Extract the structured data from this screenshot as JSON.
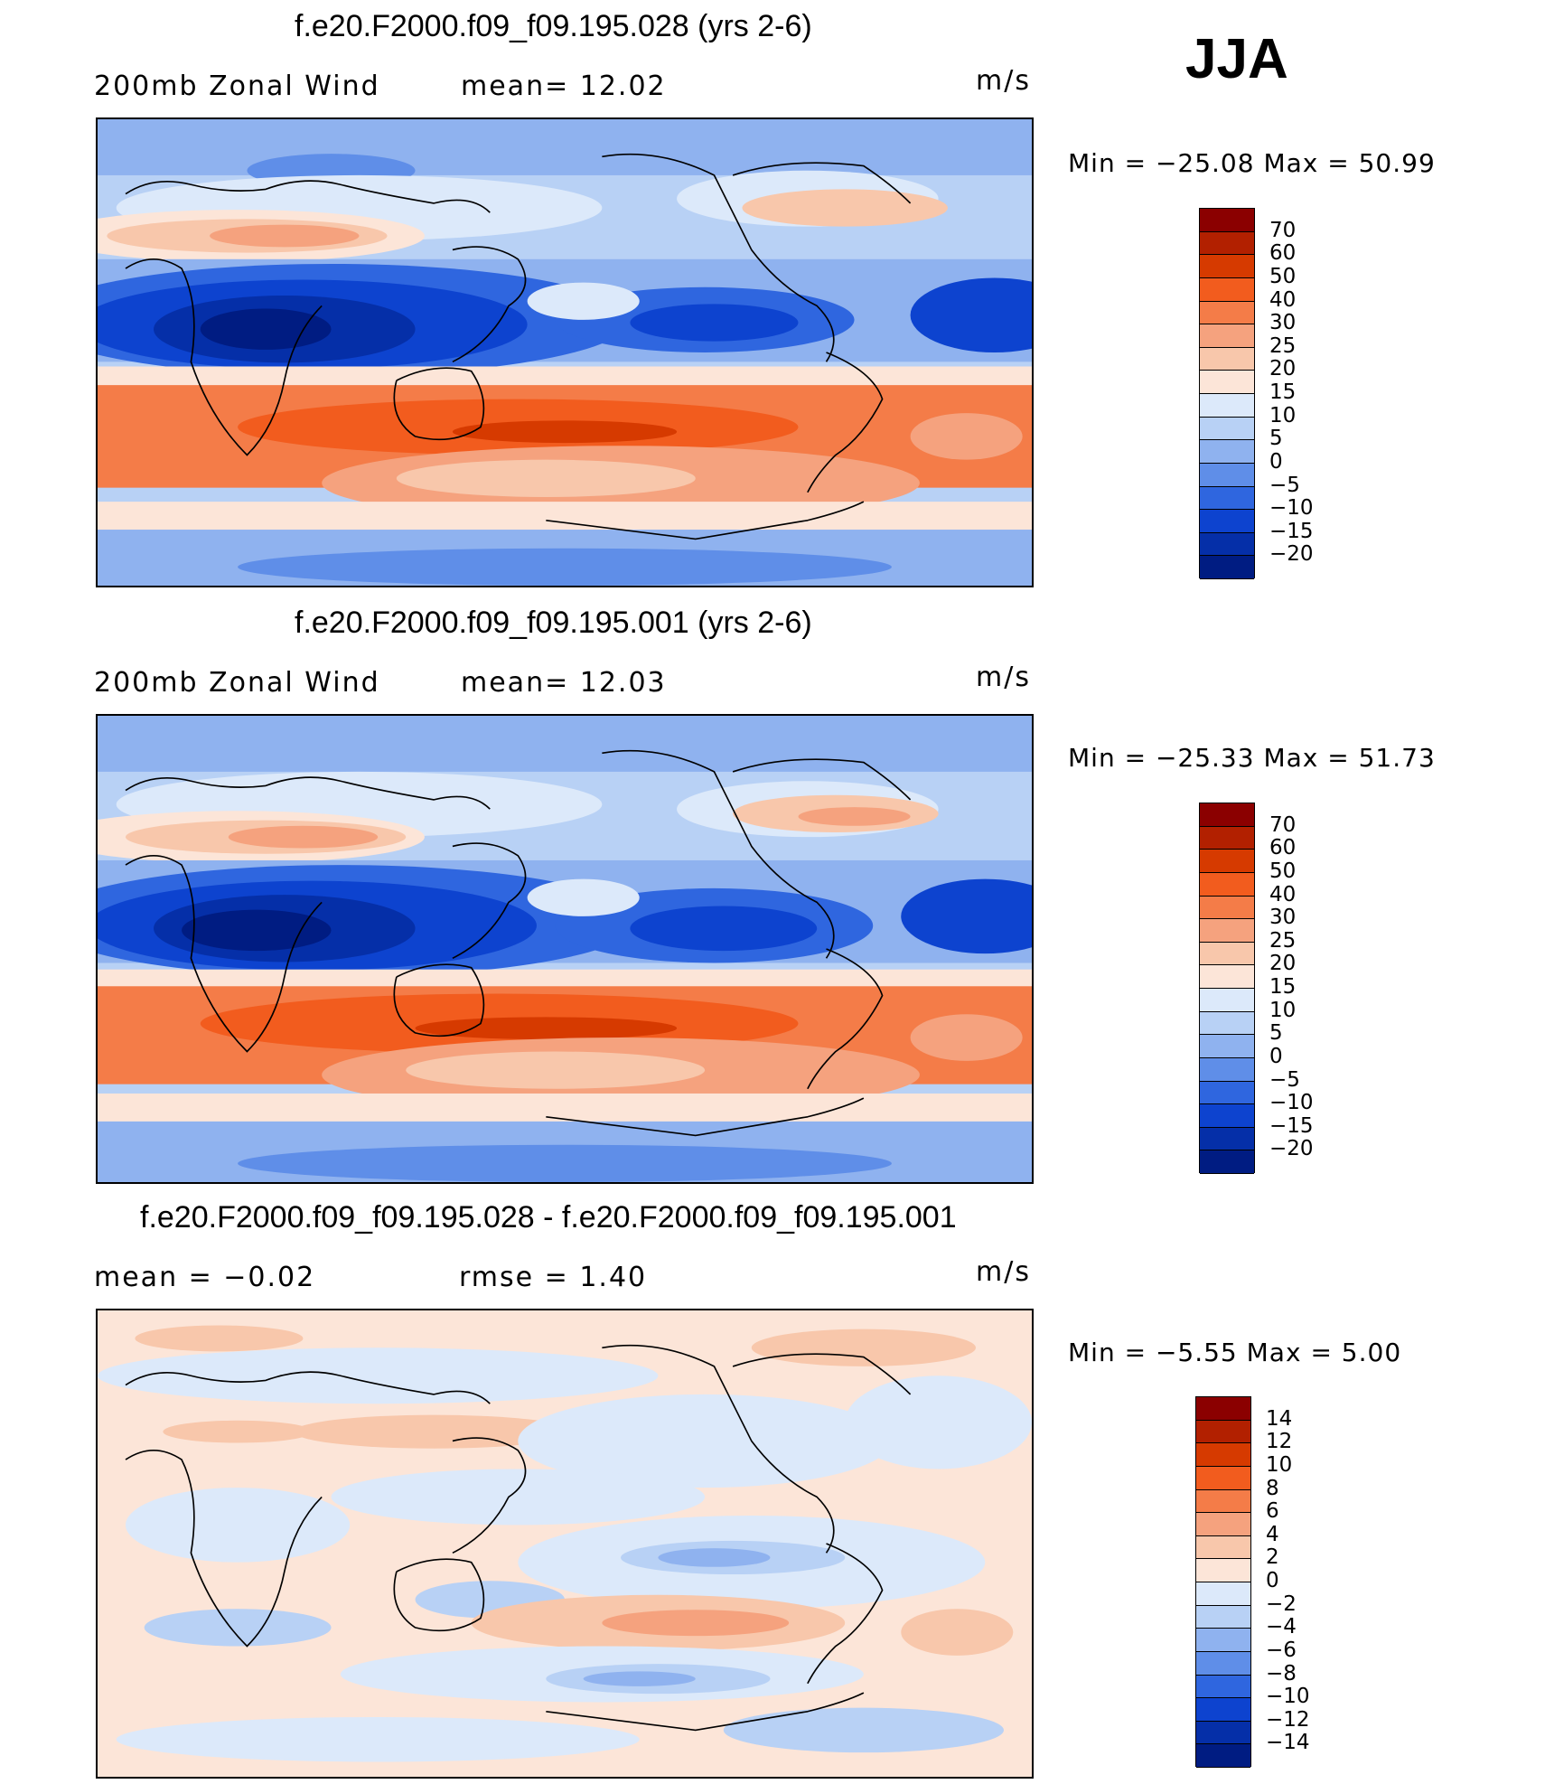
{
  "season": "JJA",
  "panels": [
    {
      "title": "f.e20.F2000.f09_f09.195.028 (yrs 2-6)",
      "left_label": "200mb  Zonal  Wind",
      "mid_label": "mean=   12.02",
      "units": "m/s",
      "minmax": "Min  =  −25.08  Max  =    50.99",
      "colorbar": {
        "colors": [
          "#8b0000",
          "#b22000",
          "#d63a00",
          "#f25c1e",
          "#f47c48",
          "#f5a27e",
          "#f8c7ab",
          "#fce5d8",
          "#dce9fa",
          "#b8d1f5",
          "#8fb2ef",
          "#5f8ee8",
          "#2f66df",
          "#0d43cf",
          "#052fa8",
          "#001c82"
        ],
        "labels": [
          "70",
          "60",
          "50",
          "40",
          "30",
          "25",
          "20",
          "15",
          "10",
          "5",
          "0",
          "−5",
          "−10",
          "−15",
          "−20"
        ]
      }
    },
    {
      "title": "f.e20.F2000.f09_f09.195.001 (yrs 2-6)",
      "left_label": "200mb  Zonal  Wind",
      "mid_label": "mean=   12.03",
      "units": "m/s",
      "minmax": "Min  =  −25.33  Max  =    51.73",
      "colorbar": {
        "colors": [
          "#8b0000",
          "#b22000",
          "#d63a00",
          "#f25c1e",
          "#f47c48",
          "#f5a27e",
          "#f8c7ab",
          "#fce5d8",
          "#dce9fa",
          "#b8d1f5",
          "#8fb2ef",
          "#5f8ee8",
          "#2f66df",
          "#0d43cf",
          "#052fa8",
          "#001c82"
        ],
        "labels": [
          "70",
          "60",
          "50",
          "40",
          "30",
          "25",
          "20",
          "15",
          "10",
          "5",
          "0",
          "−5",
          "−10",
          "−15",
          "−20"
        ]
      }
    },
    {
      "title": "f.e20.F2000.f09_f09.195.028 - f.e20.F2000.f09_f09.195.001",
      "left_label": "mean  =    −0.02",
      "mid_label": "rmse  =     1.40",
      "units": "m/s",
      "minmax": "Min  =    −5.55  Max  =      5.00",
      "colorbar": {
        "colors": [
          "#8b0000",
          "#b22000",
          "#d63a00",
          "#f25c1e",
          "#f47c48",
          "#f5a27e",
          "#f8c7ab",
          "#fce5d8",
          "#dce9fa",
          "#b8d1f5",
          "#8fb2ef",
          "#5f8ee8",
          "#2f66df",
          "#0d43cf",
          "#052fa8",
          "#001c82"
        ],
        "labels": [
          "14",
          "12",
          "10",
          "8",
          "6",
          "4",
          "2",
          "0",
          "−2",
          "−4",
          "−6",
          "−8",
          "−10",
          "−12",
          "−14"
        ]
      }
    }
  ]
}
